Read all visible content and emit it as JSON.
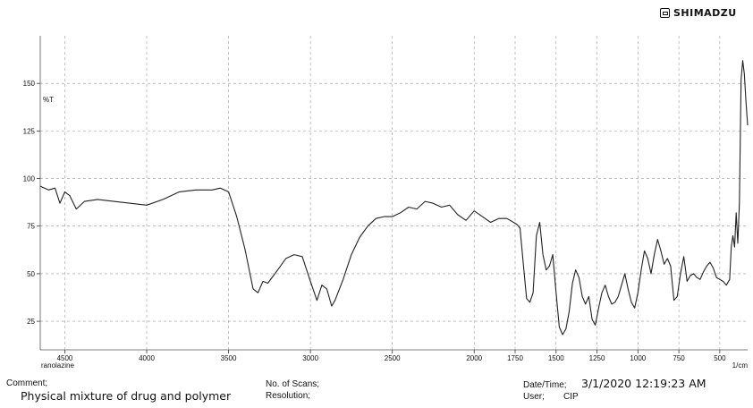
{
  "brand": "SHIMADZU",
  "chart_data": {
    "type": "line",
    "ylabel": "%T",
    "xlabel": "1/cm",
    "sample_label": "ranolazine",
    "xlim": [
      4650,
      330
    ],
    "ylim": [
      10,
      175
    ],
    "x_ticks": [
      4500,
      4000,
      3500,
      3000,
      2500,
      2000,
      1750,
      1500,
      1250,
      1000,
      750,
      500
    ],
    "x_tick_labels": [
      "4500",
      "4000",
      "3500",
      "3000",
      "2500",
      "2000",
      "1750",
      "1500",
      "1250",
      "1000",
      "750",
      "500"
    ],
    "y_ticks": [
      25,
      50,
      75,
      100,
      125,
      150
    ],
    "y_tick_labels": [
      "25",
      "50",
      "75",
      "100",
      "125",
      "150"
    ],
    "grid": true,
    "line_color": "#222222",
    "series": [
      {
        "x": [
          4650,
          4600,
          4560,
          4530,
          4500,
          4470,
          4430,
          4380,
          4300,
          4200,
          4100,
          4000,
          3900,
          3800,
          3700,
          3600,
          3550,
          3500,
          3450,
          3400,
          3350,
          3320,
          3290,
          3260,
          3200,
          3150,
          3100,
          3050,
          3000,
          2960,
          2930,
          2900,
          2870,
          2850,
          2800,
          2750,
          2700,
          2650,
          2600,
          2550,
          2500,
          2450,
          2400,
          2350,
          2300,
          2250,
          2200,
          2150,
          2100,
          2050,
          2000,
          1950,
          1900,
          1850,
          1800,
          1760,
          1740,
          1720,
          1700,
          1680,
          1660,
          1640,
          1620,
          1600,
          1580,
          1560,
          1540,
          1520,
          1500,
          1480,
          1460,
          1440,
          1420,
          1400,
          1380,
          1360,
          1340,
          1320,
          1300,
          1280,
          1260,
          1240,
          1220,
          1200,
          1180,
          1160,
          1140,
          1120,
          1100,
          1080,
          1060,
          1040,
          1020,
          1000,
          980,
          960,
          940,
          920,
          900,
          880,
          860,
          840,
          820,
          800,
          780,
          760,
          740,
          720,
          700,
          680,
          660,
          640,
          620,
          600,
          580,
          560,
          540,
          520,
          500,
          480,
          460,
          440,
          430,
          420,
          410,
          400,
          390,
          380,
          370,
          360,
          350,
          340,
          330
        ],
        "y": [
          96,
          94,
          95,
          87,
          93,
          91,
          84,
          88,
          89,
          88,
          87,
          86,
          89,
          93,
          94,
          94,
          95,
          93,
          80,
          63,
          42,
          40,
          46,
          45,
          52,
          58,
          60,
          59,
          46,
          36,
          44,
          42,
          33,
          36,
          47,
          60,
          69,
          75,
          79,
          80,
          80,
          82,
          85,
          84,
          88,
          87,
          85,
          86,
          81,
          78,
          83,
          80,
          77,
          79,
          79,
          77,
          76,
          74,
          55,
          37,
          35,
          40,
          70,
          77,
          60,
          52,
          54,
          60,
          40,
          22,
          18,
          21,
          30,
          45,
          52,
          48,
          38,
          34,
          38,
          26,
          23,
          32,
          40,
          44,
          38,
          34,
          35,
          38,
          44,
          50,
          42,
          35,
          32,
          40,
          52,
          62,
          58,
          50,
          60,
          68,
          62,
          55,
          58,
          54,
          36,
          38,
          50,
          59,
          46,
          49,
          50,
          48,
          47,
          51,
          54,
          56,
          53,
          48,
          47,
          46,
          44,
          47,
          64,
          70,
          64,
          82,
          66,
          87,
          152,
          162,
          155,
          140,
          128
        ]
      }
    ]
  },
  "footer": {
    "comment_label": "Comment;",
    "comment_value": "Physical mixture of drug and polymer",
    "scans_label": "No. of Scans;",
    "resolution_label": "Resolution;",
    "datetime_label": "Date/Time;",
    "datetime_value": "3/1/2020 12:19:23 AM",
    "user_label": "User;",
    "user_value": "CIP"
  }
}
